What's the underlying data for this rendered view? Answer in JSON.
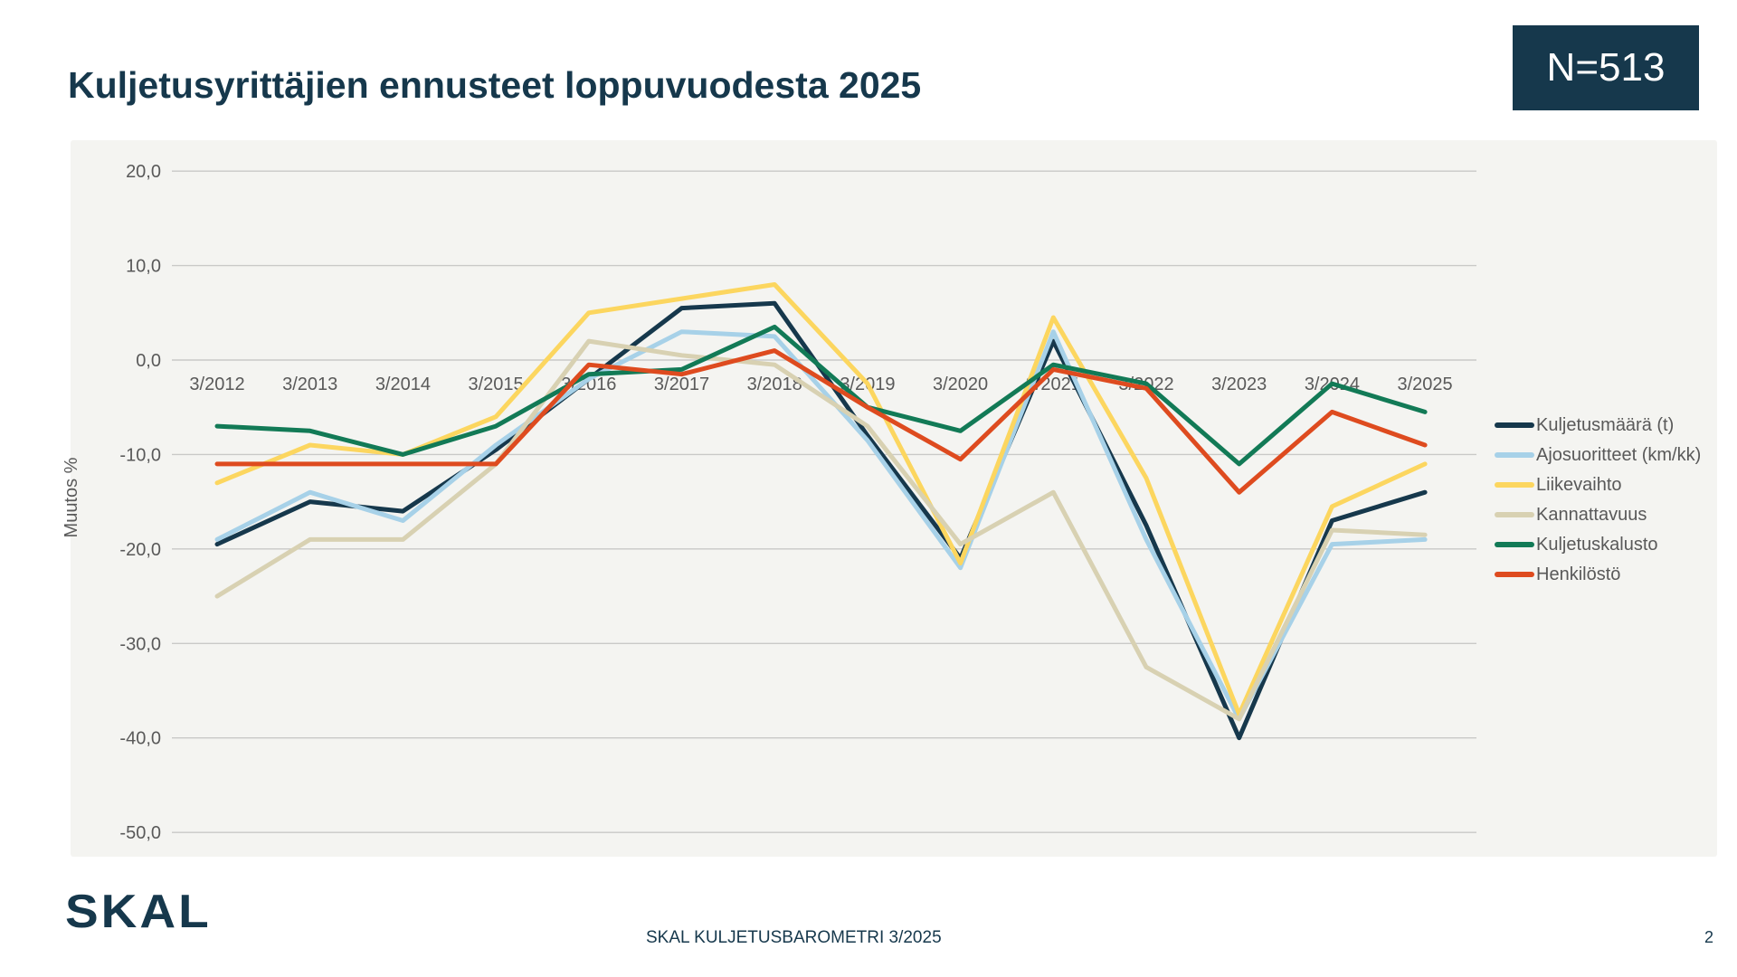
{
  "header": {
    "title": "Kuljetusyrittäjien ennusteet loppuvuodesta 2025",
    "badge": "N=513"
  },
  "footer": {
    "logo": "SKAL",
    "caption": "SKAL KULJETUSBAROMETRI 3/2025",
    "page": "2"
  },
  "colors": {
    "accent_navy": "#16384c",
    "panel_bg": "#f4f4f1",
    "gridline": "#c9c9c7",
    "axis_text": "#595959"
  },
  "chart_data": {
    "type": "line",
    "title": "Kuljetusyrittäjien ennusteet loppuvuodesta 2025",
    "xlabel": "",
    "ylabel": "Muutos %",
    "ylim": [
      -50,
      20
    ],
    "ytick_values": [
      20,
      10,
      0,
      -10,
      -20,
      -30,
      -40,
      -50
    ],
    "ytick_labels": [
      "20,0",
      "10,0",
      "0,0",
      "-10,0",
      "-20,0",
      "-30,0",
      "-40,0",
      "-50,0"
    ],
    "grid": true,
    "legend_position": "right",
    "categories": [
      "3/2012",
      "3/2013",
      "3/2014",
      "3/2015",
      "3/2016",
      "3/2017",
      "3/2018",
      "3/2019",
      "3/2020",
      "3/2021",
      "3/2022",
      "3/2023",
      "3/2024",
      "3/2025"
    ],
    "series": [
      {
        "name": "Kuljetusmäärä (t)",
        "color": "#16384c",
        "values": [
          -19.5,
          -15,
          -16,
          -9.5,
          -2,
          5.5,
          6,
          -8,
          -21,
          2,
          -17.5,
          -40,
          -17,
          -14
        ]
      },
      {
        "name": "Ajosuoritteet (km/kk)",
        "color": "#a7d1e8",
        "values": [
          -19,
          -14,
          -17,
          -9,
          -2,
          3,
          2.5,
          -8.5,
          -22,
          3,
          -19,
          -38,
          -19.5,
          -19
        ]
      },
      {
        "name": "Liikevaihto",
        "color": "#fcd65f",
        "values": [
          -13,
          -9,
          -10,
          -6,
          5,
          6.5,
          8,
          -2.5,
          -21.5,
          4.5,
          -12.5,
          -37.5,
          -15.5,
          -11
        ]
      },
      {
        "name": "Kannattavuus",
        "color": "#d8d1b2",
        "values": [
          -25,
          -19,
          -19,
          -11,
          2,
          0.5,
          -0.5,
          -7,
          -19.5,
          -14,
          -32.5,
          -38,
          -18,
          -18.5
        ]
      },
      {
        "name": "Kuljetuskalusto",
        "color": "#127a56",
        "values": [
          -7,
          -7.5,
          -10,
          -7,
          -1.5,
          -1,
          3.5,
          -5,
          -7.5,
          -0.5,
          -2.5,
          -11,
          -2.5,
          -5.5
        ]
      },
      {
        "name": "Henkilöstö",
        "color": "#de4b1f",
        "values": [
          -11,
          -11,
          -11,
          -11,
          -0.5,
          -1.5,
          1,
          -5,
          -10.5,
          -1,
          -3,
          -14,
          -5.5,
          -9
        ]
      }
    ]
  }
}
